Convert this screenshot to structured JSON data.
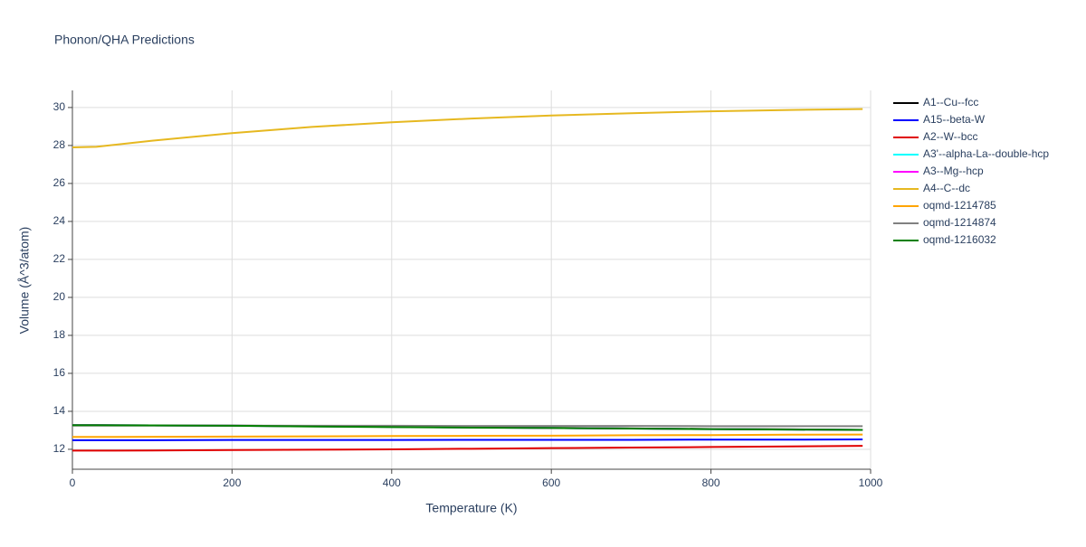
{
  "chart_data": {
    "type": "line",
    "title": "Phonon/QHA Predictions",
    "x_label": "Temperature (K)",
    "y_label": "Volume (Å^3/atom)",
    "x": [
      0,
      30,
      100,
      200,
      300,
      400,
      500,
      600,
      700,
      800,
      900,
      990
    ],
    "series": [
      {
        "name": "A1--Cu--fcc",
        "color": "#000000",
        "values": [
          13.27,
          13.27,
          13.26,
          13.25,
          13.22,
          13.19,
          13.16,
          13.13,
          13.1,
          13.07,
          13.05,
          13.02
        ]
      },
      {
        "name": "A15--beta-W",
        "color": "#0000ff",
        "values": [
          12.48,
          12.48,
          12.48,
          12.49,
          12.49,
          12.49,
          12.5,
          12.5,
          12.5,
          12.51,
          12.51,
          12.52
        ]
      },
      {
        "name": "A2--W--bcc",
        "color": "#e00000",
        "values": [
          11.93,
          11.93,
          11.94,
          11.96,
          11.98,
          12.0,
          12.03,
          12.06,
          12.09,
          12.12,
          12.15,
          12.18
        ]
      },
      {
        "name": "A3'--alpha-La--double-hcp",
        "color": "#00ffff",
        "values": [
          13.27,
          13.27,
          13.26,
          13.24,
          13.21,
          13.18,
          13.15,
          13.12,
          13.09,
          13.06,
          13.04,
          13.02
        ]
      },
      {
        "name": "A3--Mg--hcp",
        "color": "#ff00ff",
        "values": [
          13.27,
          13.27,
          13.26,
          13.24,
          13.21,
          13.18,
          13.15,
          13.12,
          13.09,
          13.06,
          13.04,
          13.02
        ]
      },
      {
        "name": "A4--C--dc",
        "color": "#e6b820",
        "values": [
          27.9,
          27.93,
          28.25,
          28.65,
          28.98,
          29.22,
          29.42,
          29.58,
          29.7,
          29.8,
          29.87,
          29.92
        ]
      },
      {
        "name": "oqmd-1214785",
        "color": "#ffa500",
        "values": [
          12.65,
          12.65,
          12.66,
          12.67,
          12.68,
          12.7,
          12.71,
          12.72,
          12.74,
          12.75,
          12.77,
          12.78
        ]
      },
      {
        "name": "oqmd-1214874",
        "color": "#808080",
        "values": [
          13.25,
          13.25,
          13.25,
          13.25,
          13.24,
          13.24,
          13.23,
          13.23,
          13.23,
          13.22,
          13.22,
          13.22
        ]
      },
      {
        "name": "oqmd-1216032",
        "color": "#008000",
        "values": [
          13.27,
          13.27,
          13.26,
          13.24,
          13.2,
          13.17,
          13.14,
          13.12,
          13.09,
          13.06,
          13.04,
          13.02
        ]
      }
    ],
    "xlim": [
      0,
      1000
    ],
    "xticks": [
      0,
      200,
      400,
      600,
      800,
      1000
    ],
    "ylim": [
      10.95,
      30.9
    ],
    "yticks": [
      12,
      14,
      16,
      18,
      20,
      22,
      24,
      26,
      28,
      30
    ],
    "grid": true
  }
}
